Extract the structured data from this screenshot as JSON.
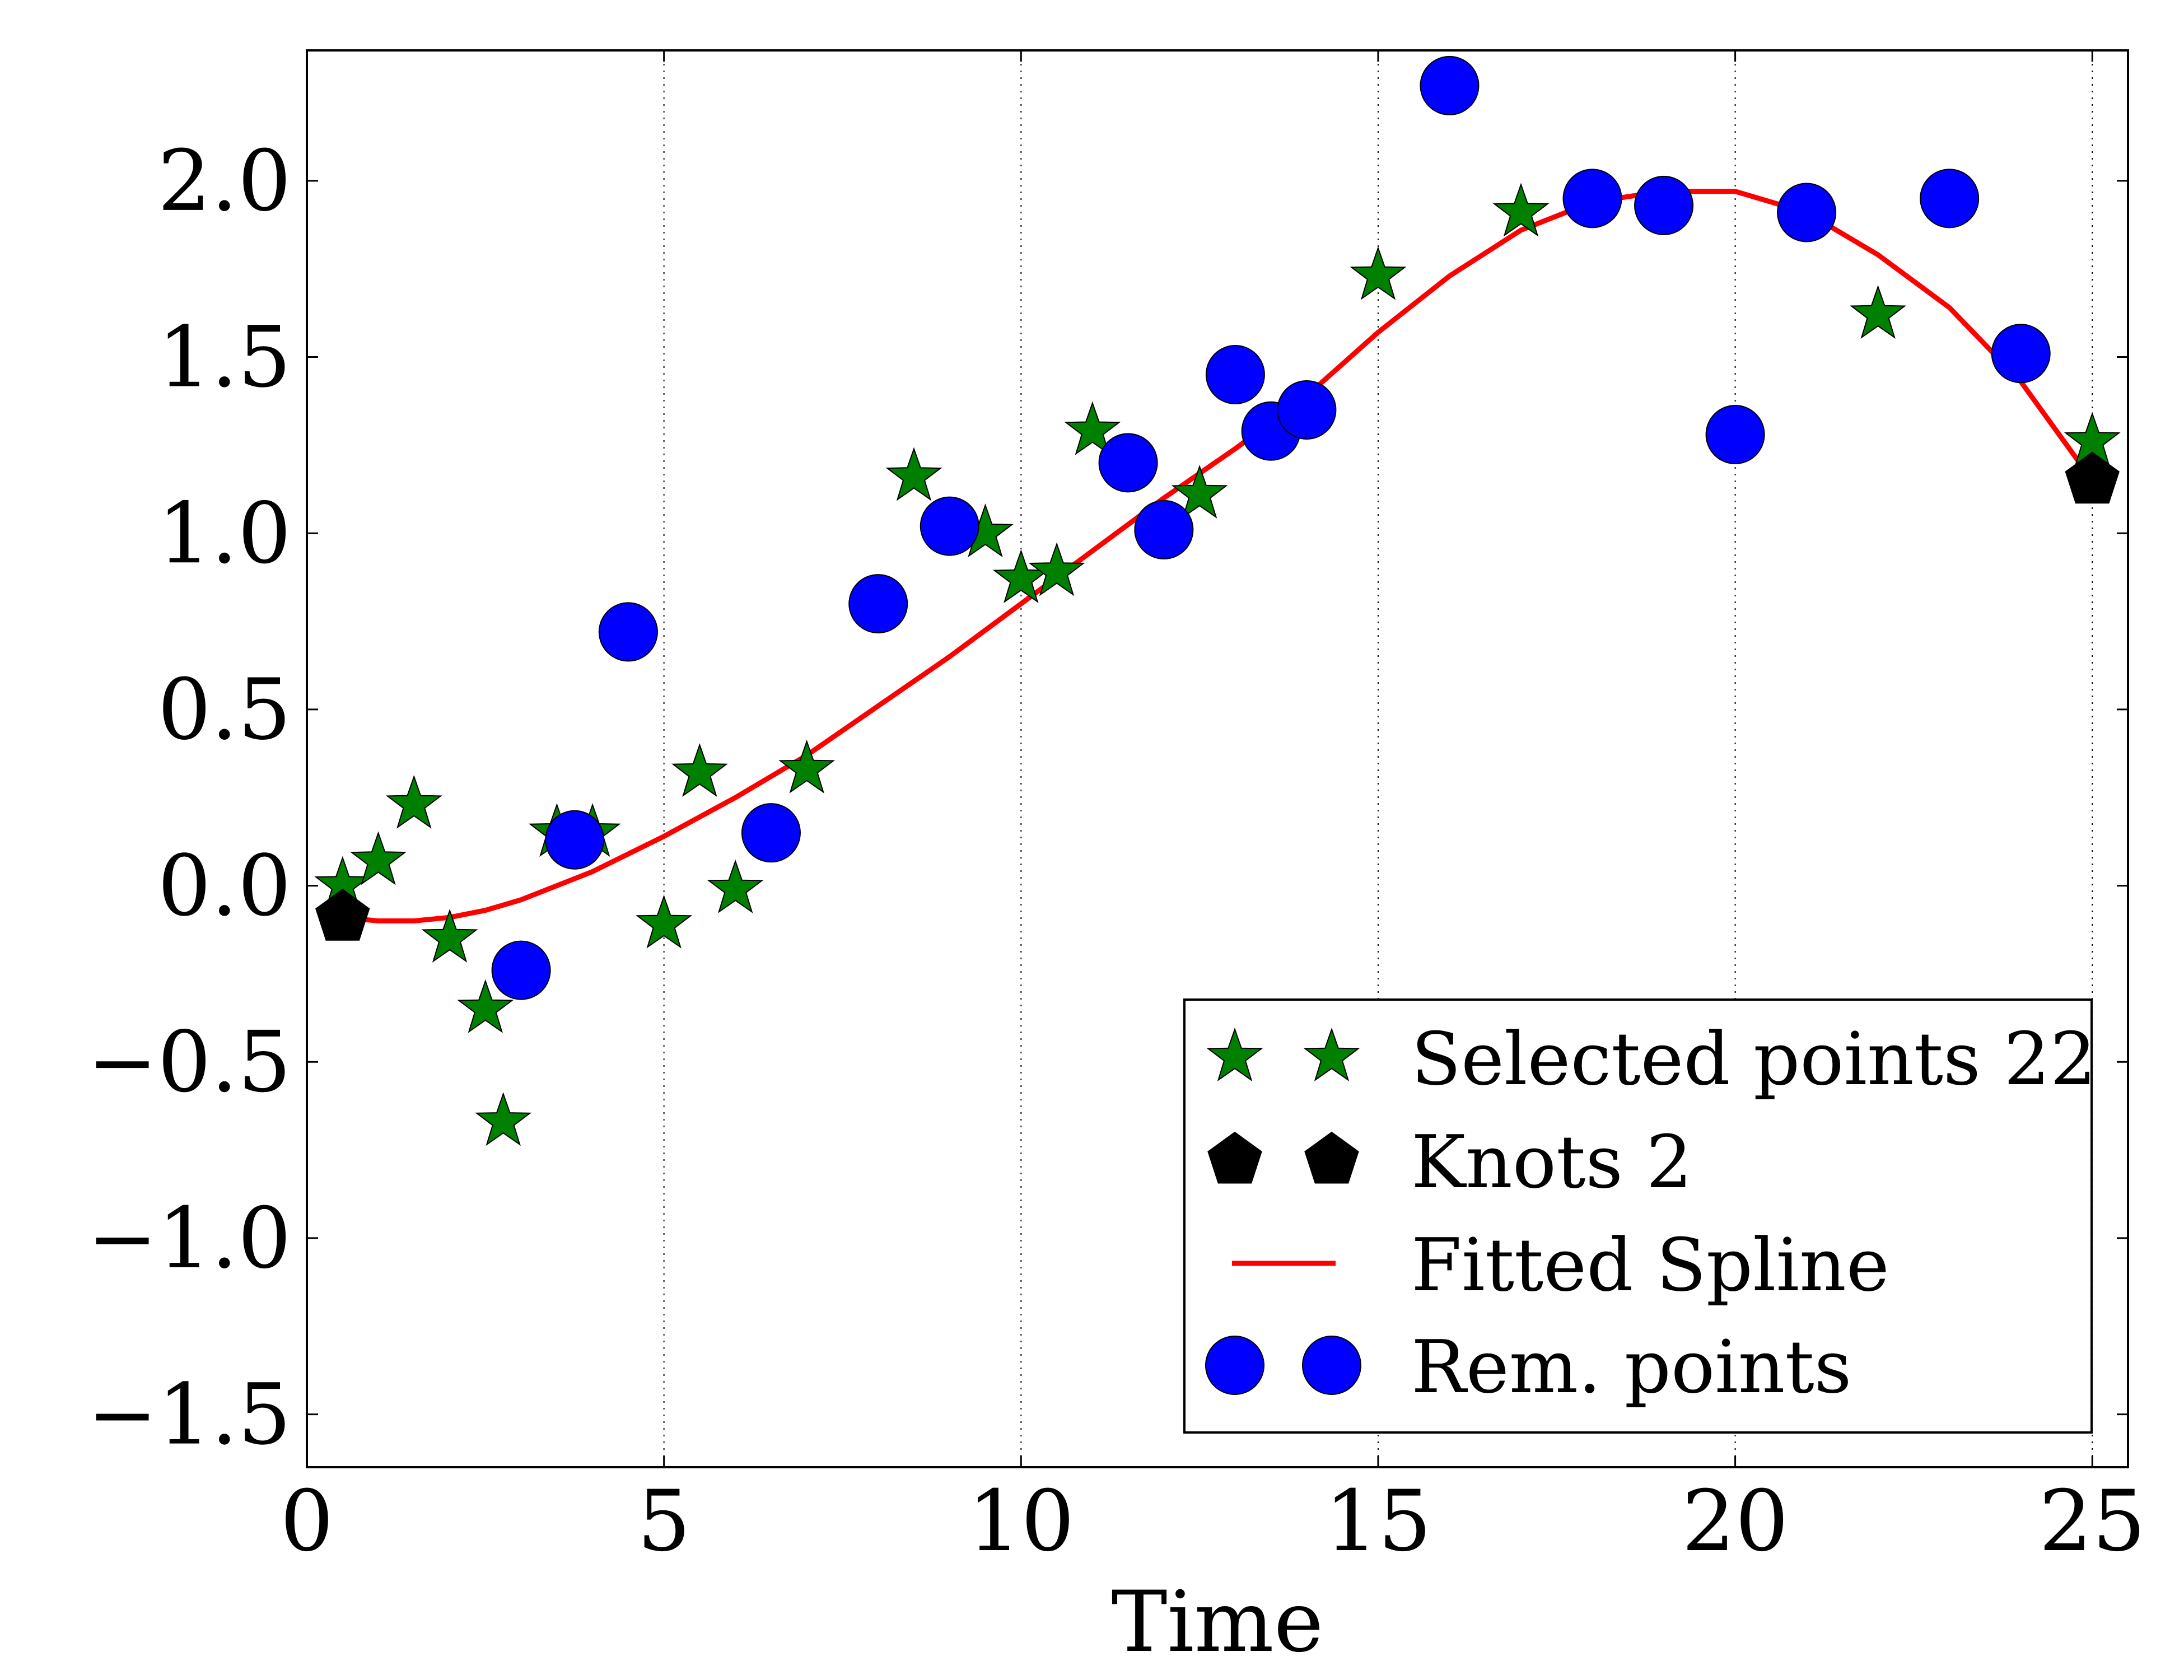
{
  "chart_data": {
    "type": "scatter",
    "xlabel": "Time",
    "ylabel": "",
    "xlim": [
      0,
      25.5
    ],
    "ylim": [
      -1.65,
      2.37
    ],
    "xticks": [
      0,
      5,
      10,
      15,
      20,
      25
    ],
    "xtick_labels": [
      "0",
      "5",
      "10",
      "15",
      "20",
      "25"
    ],
    "yticks": [
      -1.5,
      -1.0,
      -0.5,
      0.0,
      0.5,
      1.0,
      1.5,
      2.0
    ],
    "ytick_labels": [
      "−1.5",
      "−1.0",
      "−0.5",
      "0.0",
      "0.5",
      "1.0",
      "1.5",
      "2.0"
    ],
    "grid": {
      "x": true,
      "y": false,
      "style": "dotted"
    },
    "legend_position": "lower-right",
    "series": [
      {
        "name": "Selected points 22",
        "kind": "star-markers",
        "color": "#008000",
        "x": [
          0.5,
          1.0,
          1.5,
          2.0,
          2.5,
          2.75,
          3.5,
          4.0,
          5.0,
          5.5,
          6.0,
          7.0,
          8.5,
          9.5,
          10.0,
          10.5,
          11.0,
          12.5,
          15.0,
          17.0,
          22.0,
          25.0
        ],
        "y": [
          0.0,
          0.07,
          0.23,
          -0.15,
          -0.35,
          -0.67,
          0.15,
          0.15,
          -0.11,
          0.32,
          -0.01,
          0.33,
          1.16,
          1.0,
          0.87,
          0.89,
          1.29,
          1.11,
          1.73,
          1.91,
          1.62,
          1.26
        ]
      },
      {
        "name": "Knots 2",
        "kind": "pentagon-markers",
        "color": "#000000",
        "x": [
          0.5,
          25.0
        ],
        "y": [
          -0.09,
          1.15
        ]
      },
      {
        "name": "Fitted Spline",
        "kind": "line",
        "color": "#ff0000",
        "x": [
          0.5,
          1.0,
          1.5,
          2.0,
          2.5,
          3.0,
          3.5,
          4.0,
          5.0,
          6.0,
          7.0,
          8.0,
          9.0,
          10.0,
          11.0,
          12.0,
          13.0,
          14.0,
          15.0,
          16.0,
          17.0,
          18.0,
          19.0,
          20.0,
          21.0,
          22.0,
          23.0,
          24.0,
          25.0
        ],
        "y": [
          -0.09,
          -0.1,
          -0.1,
          -0.09,
          -0.07,
          -0.04,
          0.0,
          0.04,
          0.14,
          0.25,
          0.37,
          0.51,
          0.65,
          0.8,
          0.95,
          1.1,
          1.24,
          1.39,
          1.57,
          1.73,
          1.86,
          1.94,
          1.97,
          1.97,
          1.91,
          1.79,
          1.64,
          1.43,
          1.15
        ]
      },
      {
        "name": "Rem. points",
        "kind": "circle-markers",
        "color": "#0000ff",
        "x": [
          3.0,
          3.75,
          4.5,
          6.5,
          8.0,
          9.0,
          11.5,
          12.0,
          13.0,
          13.5,
          14.0,
          16.0,
          18.0,
          19.0,
          20.0,
          21.0,
          23.0,
          24.0
        ],
        "y": [
          -0.24,
          0.13,
          0.72,
          0.15,
          0.8,
          1.02,
          1.2,
          1.01,
          1.45,
          1.29,
          1.35,
          2.27,
          1.95,
          1.93,
          1.28,
          1.91,
          1.95,
          1.51
        ]
      }
    ]
  }
}
